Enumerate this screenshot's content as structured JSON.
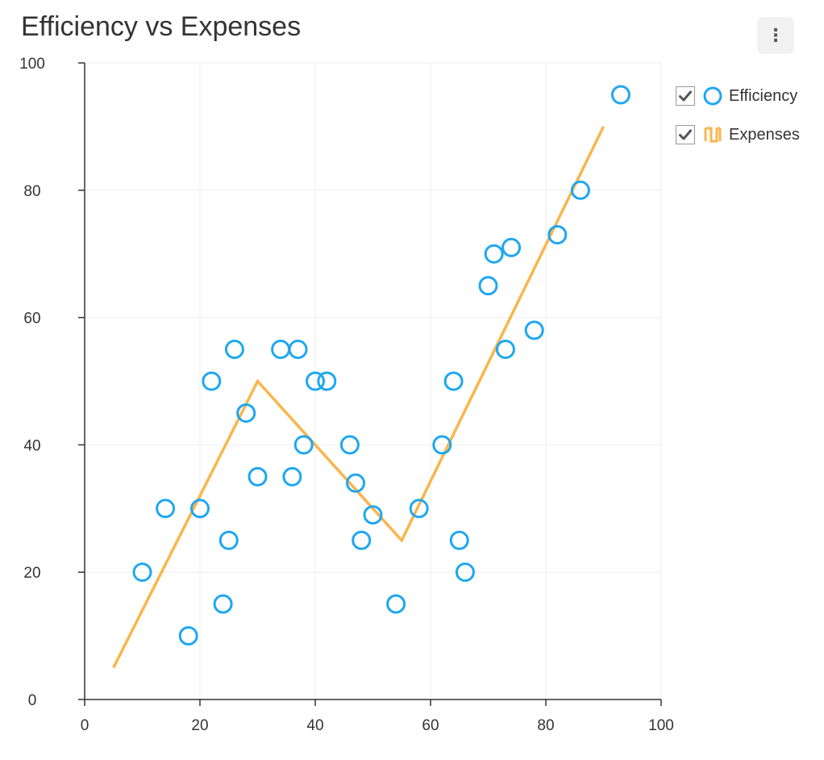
{
  "header": {
    "title": "Efficiency vs Expenses",
    "menu_icon": "vertical-ellipsis-icon"
  },
  "legend": [
    {
      "label": "Efficiency",
      "icon": "circle-marker-icon",
      "color": "#1ea7f0",
      "checked": true
    },
    {
      "label": "Expenses",
      "icon": "line-series-icon",
      "color": "#fbb54c",
      "checked": true
    }
  ],
  "colors": {
    "efficiency": "#1ea7f0",
    "expenses": "#fbb54c",
    "grid": "#eeeeee",
    "axis": "#333333"
  },
  "chart_data": {
    "type": "scatter",
    "title": "Efficiency vs Expenses",
    "xlabel": "",
    "ylabel": "",
    "xlim": [
      0,
      100
    ],
    "ylim": [
      0,
      100
    ],
    "xticks": [
      0,
      20,
      40,
      60,
      80,
      100
    ],
    "yticks": [
      0,
      20,
      40,
      60,
      80,
      100
    ],
    "grid": true,
    "legend_position": "right",
    "series": [
      {
        "name": "Efficiency",
        "type": "scatter",
        "points": [
          [
            10,
            20
          ],
          [
            14,
            30
          ],
          [
            18,
            10
          ],
          [
            20,
            30
          ],
          [
            22,
            50
          ],
          [
            24,
            15
          ],
          [
            25,
            25
          ],
          [
            26,
            55
          ],
          [
            28,
            45
          ],
          [
            30,
            35
          ],
          [
            34,
            55
          ],
          [
            36,
            35
          ],
          [
            37,
            55
          ],
          [
            38,
            40
          ],
          [
            40,
            50
          ],
          [
            42,
            50
          ],
          [
            46,
            40
          ],
          [
            47,
            34
          ],
          [
            48,
            25
          ],
          [
            50,
            29
          ],
          [
            54,
            15
          ],
          [
            58,
            30
          ],
          [
            62,
            40
          ],
          [
            64,
            50
          ],
          [
            65,
            25
          ],
          [
            66,
            20
          ],
          [
            70,
            65
          ],
          [
            71,
            70
          ],
          [
            73,
            55
          ],
          [
            74,
            71
          ],
          [
            78,
            58
          ],
          [
            82,
            73
          ],
          [
            86,
            80
          ],
          [
            93,
            95
          ]
        ]
      },
      {
        "name": "Expenses",
        "type": "line",
        "points": [
          [
            5,
            5
          ],
          [
            30,
            50
          ],
          [
            55,
            25
          ],
          [
            90,
            90
          ]
        ]
      }
    ]
  }
}
